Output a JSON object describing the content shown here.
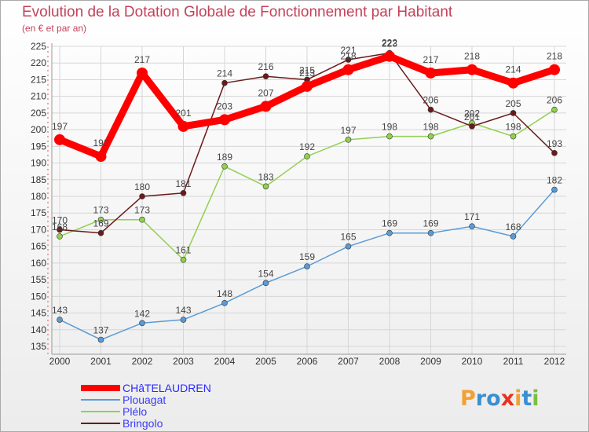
{
  "chart_data": {
    "type": "line",
    "title": "Evolution de la Dotation Globale de Fonctionnement par Habitant",
    "subtitle": "(en € et par an)",
    "xlabel": "",
    "ylabel": "",
    "ylim": [
      135,
      225
    ],
    "yticks": [
      135,
      140,
      145,
      150,
      155,
      160,
      165,
      170,
      175,
      180,
      185,
      190,
      195,
      200,
      205,
      210,
      215,
      220,
      225
    ],
    "categories": [
      "2000",
      "2001",
      "2002",
      "2003",
      "2004",
      "2005",
      "2006",
      "2007",
      "2008",
      "2009",
      "2010",
      "2011",
      "2012"
    ],
    "series": [
      {
        "name": "CHâTELAUDREN",
        "color": "#ff0000",
        "values": [
          197,
          192,
          217,
          201,
          203,
          207,
          213,
          218,
          222,
          217,
          218,
          214,
          218
        ]
      },
      {
        "name": "Plouagat",
        "color": "#5b9bd5",
        "values": [
          143,
          137,
          142,
          143,
          148,
          154,
          159,
          165,
          169,
          169,
          171,
          168,
          182
        ]
      },
      {
        "name": "Plélo",
        "color": "#92d050",
        "values": [
          168,
          173,
          173,
          161,
          189,
          183,
          192,
          197,
          198,
          198,
          202,
          198,
          206
        ]
      },
      {
        "name": "Bringolo",
        "color": "#6b1a1a",
        "values": [
          170,
          169,
          180,
          181,
          214,
          216,
          215,
          221,
          223,
          206,
          201,
          205,
          193
        ]
      }
    ]
  },
  "logo": {
    "text": "Proxiti"
  }
}
